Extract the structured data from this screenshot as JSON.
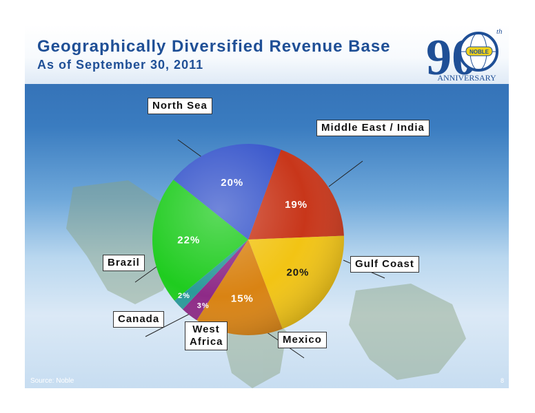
{
  "header": {
    "title": "Geographically Diversified Revenue Base",
    "subtitle": "As of September 30, 2011"
  },
  "logo": {
    "number": "90",
    "superscript": "th",
    "badge": "NOBLE",
    "caption": "ANNIVERSARY"
  },
  "colors": {
    "title": "#1f4f96",
    "north_sea": "#3a58cc",
    "middle_east_india": "#c8361a",
    "gulf_coast": "#f2c414",
    "mexico": "#d98313",
    "west_africa": "#8e2a87",
    "canada": "#2b9a9a",
    "brazil": "#1fcc1f"
  },
  "chart_data": {
    "type": "pie",
    "title": "Geographically Diversified Revenue Base",
    "subtitle": "As of September 30, 2011",
    "slices": [
      {
        "label": "Middle East / India",
        "value": 19,
        "value_label": "19%",
        "color": "#c8361a"
      },
      {
        "label": "Gulf Coast",
        "value": 20,
        "value_label": "20%",
        "color": "#f2c414"
      },
      {
        "label": "Mexico",
        "value": 15,
        "value_label": "15%",
        "color": "#d98313"
      },
      {
        "label": "West Africa",
        "value": 3,
        "value_label": "3%",
        "color": "#8e2a87"
      },
      {
        "label": "Canada",
        "value": 2,
        "value_label": "2%",
        "color": "#2b9a9a"
      },
      {
        "label": "Brazil",
        "value": 22,
        "value_label": "22%",
        "color": "#1fcc1f"
      },
      {
        "label": "North Sea",
        "value": 20,
        "value_label": "20%",
        "color": "#3a58cc"
      }
    ]
  },
  "footer": {
    "source": "Source: Noble",
    "page_number": "8"
  }
}
